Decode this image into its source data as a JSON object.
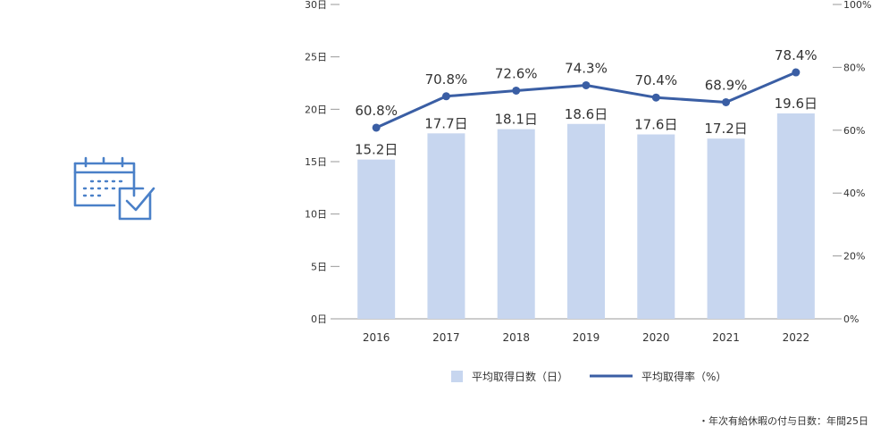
{
  "chart_data": {
    "type": "bar",
    "categories": [
      "2016",
      "2017",
      "2018",
      "2019",
      "2020",
      "2021",
      "2022"
    ],
    "series": [
      {
        "name": "平均取得日数（日）",
        "type": "bar",
        "axis": "left",
        "values": [
          15.2,
          17.7,
          18.1,
          18.6,
          17.6,
          17.2,
          19.6
        ],
        "labels": [
          "15.2日",
          "17.7日",
          "18.1日",
          "18.6日",
          "17.6日",
          "17.2日",
          "19.6日"
        ],
        "color": "#c7d6ef"
      },
      {
        "name": "平均取得率（%）",
        "type": "line",
        "axis": "right",
        "values": [
          60.8,
          70.8,
          72.6,
          74.3,
          70.4,
          68.9,
          78.4
        ],
        "labels": [
          "60.8%",
          "70.8%",
          "72.6%",
          "74.3%",
          "70.4%",
          "68.9%",
          "78.4%"
        ],
        "color": "#3a5ea4"
      }
    ],
    "y_left": {
      "ylim": [
        0,
        30
      ],
      "ticks": [
        0,
        5,
        10,
        15,
        20,
        25,
        30
      ],
      "tick_labels": [
        "0日",
        "5日",
        "10日",
        "15日",
        "20日",
        "25日",
        "30日"
      ]
    },
    "y_right": {
      "ylim": [
        0,
        100
      ],
      "ticks": [
        0,
        20,
        40,
        60,
        80,
        100
      ],
      "tick_labels": [
        "0%",
        "20%",
        "40%",
        "60%",
        "80%",
        "100%"
      ]
    },
    "grid": false,
    "legend": "bottom"
  },
  "icon": "calendar-check-icon",
  "icon_color": "#4a80c8",
  "note": "・年次有給休暇の付与日数：年間25日"
}
